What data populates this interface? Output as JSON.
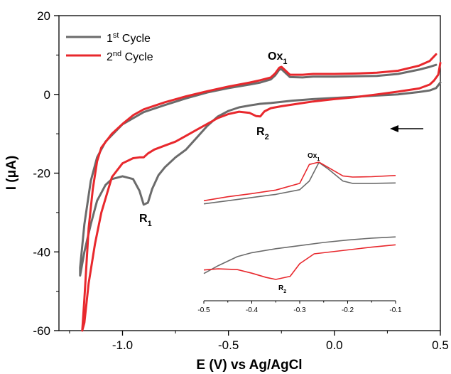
{
  "chart_data": {
    "type": "line",
    "xlabel": "E (V) vs Ag/AgCl",
    "ylabel": "I (μA)",
    "xlim": [
      -1.3,
      0.5
    ],
    "ylim": [
      -60,
      20
    ],
    "xticks": [
      "-1.0",
      "-0.5",
      "0.0",
      "0.5"
    ],
    "yticks": [
      "20",
      "0",
      "-20",
      "-40",
      "-60"
    ],
    "legend_position": "top-left",
    "series": [
      {
        "name_base": "1",
        "name_sup": "st",
        "name_tail": " Cycle",
        "color": "#6b6b6b",
        "points": [
          [
            0.5,
            3.0
          ],
          [
            0.48,
            1.6
          ],
          [
            0.45,
            1.0
          ],
          [
            0.4,
            0.6
          ],
          [
            0.3,
            0.0
          ],
          [
            0.2,
            -0.3
          ],
          [
            0.1,
            -0.6
          ],
          [
            0.0,
            -0.9
          ],
          [
            -0.1,
            -1.2
          ],
          [
            -0.2,
            -1.6
          ],
          [
            -0.25,
            -1.9
          ],
          [
            -0.3,
            -2.2
          ],
          [
            -0.35,
            -2.4
          ],
          [
            -0.4,
            -2.8
          ],
          [
            -0.45,
            -3.3
          ],
          [
            -0.5,
            -4.2
          ],
          [
            -0.55,
            -5.6
          ],
          [
            -0.6,
            -8.0
          ],
          [
            -0.65,
            -11.0
          ],
          [
            -0.7,
            -14.0
          ],
          [
            -0.75,
            -16.0
          ],
          [
            -0.8,
            -18.5
          ],
          [
            -0.83,
            -20.5
          ],
          [
            -0.86,
            -24.0
          ],
          [
            -0.88,
            -27.5
          ],
          [
            -0.9,
            -28.0
          ],
          [
            -0.92,
            -24.5
          ],
          [
            -0.95,
            -21.5
          ],
          [
            -1.0,
            -20.8
          ],
          [
            -1.05,
            -21.5
          ],
          [
            -1.08,
            -23.0
          ],
          [
            -1.12,
            -27.0
          ],
          [
            -1.15,
            -33.0
          ],
          [
            -1.18,
            -40.0
          ],
          [
            -1.2,
            -46.0
          ],
          [
            -1.2,
            -44.0
          ],
          [
            -1.18,
            -33.0
          ],
          [
            -1.15,
            -22.0
          ],
          [
            -1.12,
            -16.0
          ],
          [
            -1.08,
            -12.0
          ],
          [
            -1.0,
            -7.6
          ],
          [
            -0.9,
            -4.5
          ],
          [
            -0.8,
            -2.7
          ],
          [
            -0.7,
            -1.0
          ],
          [
            -0.6,
            0.5
          ],
          [
            -0.5,
            1.6
          ],
          [
            -0.4,
            2.5
          ],
          [
            -0.35,
            3.0
          ],
          [
            -0.3,
            3.8
          ],
          [
            -0.28,
            4.8
          ],
          [
            -0.26,
            6.3
          ],
          [
            -0.25,
            6.4
          ],
          [
            -0.23,
            5.4
          ],
          [
            -0.21,
            4.4
          ],
          [
            -0.15,
            4.3
          ],
          [
            -0.1,
            4.5
          ],
          [
            0.0,
            4.5
          ],
          [
            0.1,
            4.6
          ],
          [
            0.2,
            4.7
          ],
          [
            0.3,
            5.2
          ],
          [
            0.4,
            6.3
          ],
          [
            0.45,
            7.0
          ],
          [
            0.48,
            7.5
          ]
        ]
      },
      {
        "name_base": "2",
        "name_sup": "nd",
        "name_tail": " Cycle",
        "color": "#e8282d",
        "points": [
          [
            0.5,
            8.0
          ],
          [
            0.49,
            5.0
          ],
          [
            0.47,
            3.5
          ],
          [
            0.45,
            2.5
          ],
          [
            0.4,
            1.5
          ],
          [
            0.3,
            0.7
          ],
          [
            0.2,
            0.0
          ],
          [
            0.1,
            -0.7
          ],
          [
            0.0,
            -1.2
          ],
          [
            -0.1,
            -1.8
          ],
          [
            -0.15,
            -2.2
          ],
          [
            -0.2,
            -2.6
          ],
          [
            -0.25,
            -3.0
          ],
          [
            -0.3,
            -3.5
          ],
          [
            -0.33,
            -4.3
          ],
          [
            -0.35,
            -5.6
          ],
          [
            -0.37,
            -5.5
          ],
          [
            -0.4,
            -4.7
          ],
          [
            -0.45,
            -4.4
          ],
          [
            -0.5,
            -5.0
          ],
          [
            -0.55,
            -6.0
          ],
          [
            -0.6,
            -7.5
          ],
          [
            -0.65,
            -9.0
          ],
          [
            -0.7,
            -10.5
          ],
          [
            -0.75,
            -12.0
          ],
          [
            -0.8,
            -13.0
          ],
          [
            -0.85,
            -14.0
          ],
          [
            -0.88,
            -15.0
          ],
          [
            -0.9,
            -16.0
          ],
          [
            -0.92,
            -16.0
          ],
          [
            -0.95,
            -16.2
          ],
          [
            -1.0,
            -17.5
          ],
          [
            -1.05,
            -21.0
          ],
          [
            -1.1,
            -30.0
          ],
          [
            -1.13,
            -38.0
          ],
          [
            -1.16,
            -48.0
          ],
          [
            -1.18,
            -58.0
          ],
          [
            -1.19,
            -60.0
          ],
          [
            -1.18,
            -52.0
          ],
          [
            -1.16,
            -34.0
          ],
          [
            -1.14,
            -24.0
          ],
          [
            -1.12,
            -17.0
          ],
          [
            -1.1,
            -13.5
          ],
          [
            -1.05,
            -10.0
          ],
          [
            -1.0,
            -7.5
          ],
          [
            -0.95,
            -5.3
          ],
          [
            -0.9,
            -3.8
          ],
          [
            -0.8,
            -2.0
          ],
          [
            -0.7,
            -0.5
          ],
          [
            -0.6,
            0.8
          ],
          [
            -0.5,
            2.0
          ],
          [
            -0.4,
            3.0
          ],
          [
            -0.35,
            3.6
          ],
          [
            -0.3,
            4.3
          ],
          [
            -0.28,
            5.3
          ],
          [
            -0.26,
            6.8
          ],
          [
            -0.25,
            7.0
          ],
          [
            -0.23,
            6.0
          ],
          [
            -0.21,
            5.0
          ],
          [
            -0.15,
            5.0
          ],
          [
            -0.1,
            5.2
          ],
          [
            0.0,
            5.2
          ],
          [
            0.1,
            5.3
          ],
          [
            0.2,
            5.5
          ],
          [
            0.3,
            6.0
          ],
          [
            0.4,
            7.3
          ],
          [
            0.45,
            8.5
          ],
          [
            0.48,
            10.2
          ]
        ]
      }
    ],
    "annotations": {
      "r1": "R",
      "r1_sub": "1",
      "r2": "R",
      "r2_sub": "2",
      "ox1": "Ox",
      "ox1_sub": "1",
      "scan_direction": "arrow pointing left"
    },
    "inset": {
      "xlim": [
        -0.5,
        -0.1
      ],
      "xticks": [
        "-0.5",
        "-0.4",
        "-0.3",
        "-0.2",
        "-0.1"
      ],
      "ox_label": "Ox",
      "ox_sub": "1",
      "r_label": "R",
      "r_sub": "2",
      "oxidation": {
        "series1": [
          [
            -0.5,
            -27.8
          ],
          [
            -0.45,
            -27.0
          ],
          [
            -0.4,
            -26.2
          ],
          [
            -0.35,
            -25.4
          ],
          [
            -0.3,
            -24.2
          ],
          [
            -0.28,
            -22.0
          ],
          [
            -0.26,
            -17.3
          ],
          [
            -0.24,
            -19.0
          ],
          [
            -0.21,
            -22.0
          ],
          [
            -0.19,
            -22.6
          ],
          [
            -0.15,
            -22.6
          ],
          [
            -0.1,
            -22.5
          ]
        ],
        "series2": [
          [
            -0.5,
            -27.0
          ],
          [
            -0.45,
            -26.0
          ],
          [
            -0.4,
            -25.2
          ],
          [
            -0.35,
            -24.3
          ],
          [
            -0.3,
            -22.6
          ],
          [
            -0.28,
            -17.8
          ],
          [
            -0.26,
            -17.2
          ],
          [
            -0.24,
            -18.6
          ],
          [
            -0.21,
            -20.7
          ],
          [
            -0.19,
            -21.0
          ],
          [
            -0.15,
            -20.9
          ],
          [
            -0.1,
            -20.6
          ]
        ]
      },
      "reduction": {
        "series1": [
          [
            -0.5,
            -45.5
          ],
          [
            -0.47,
            -43.5
          ],
          [
            -0.43,
            -41.2
          ],
          [
            -0.4,
            -40.2
          ],
          [
            -0.35,
            -39.2
          ],
          [
            -0.3,
            -38.4
          ],
          [
            -0.25,
            -37.6
          ],
          [
            -0.2,
            -37.0
          ],
          [
            -0.15,
            -36.5
          ],
          [
            -0.1,
            -36.2
          ]
        ],
        "series2": [
          [
            -0.5,
            -44.6
          ],
          [
            -0.47,
            -44.3
          ],
          [
            -0.43,
            -44.5
          ],
          [
            -0.4,
            -45.4
          ],
          [
            -0.37,
            -46.5
          ],
          [
            -0.35,
            -47.0
          ],
          [
            -0.32,
            -46.2
          ],
          [
            -0.3,
            -43.0
          ],
          [
            -0.27,
            -40.5
          ],
          [
            -0.2,
            -39.5
          ],
          [
            -0.15,
            -38.8
          ],
          [
            -0.1,
            -38.2
          ]
        ]
      }
    }
  }
}
